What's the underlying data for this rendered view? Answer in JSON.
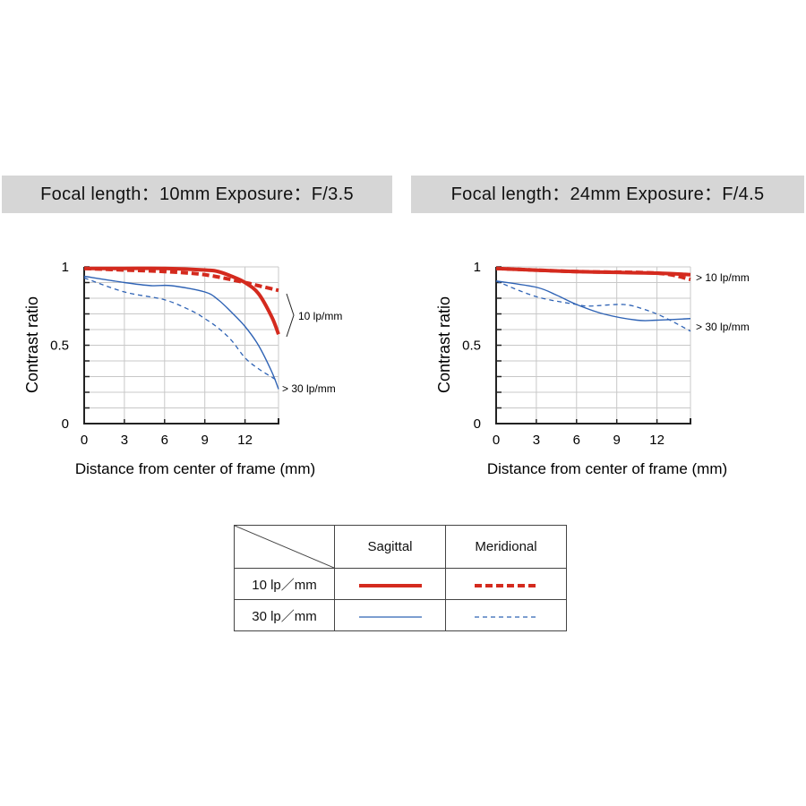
{
  "chart_data": [
    {
      "type": "line",
      "title": "Focal length：10mm  Exposure：F/3.5",
      "xlabel": "Distance from center of frame (mm)",
      "ylabel": "Contrast ratio",
      "xlim": [
        0,
        14.5
      ],
      "ylim": [
        0,
        1
      ],
      "xticks": [
        "0",
        "3",
        "6",
        "9",
        "12"
      ],
      "yticks": [
        "0",
        "0.5",
        "1"
      ],
      "grid": true,
      "annotations": [
        "10 lp/mm",
        "30 lp/mm"
      ],
      "series": [
        {
          "name": "10 lp/mm Sagittal",
          "x": [
            0,
            3,
            6,
            9,
            10,
            11,
            12,
            13,
            14,
            14.5
          ],
          "y": [
            0.99,
            0.99,
            0.99,
            0.98,
            0.97,
            0.94,
            0.9,
            0.83,
            0.68,
            0.57
          ]
        },
        {
          "name": "10 lp/mm Meridional",
          "x": [
            0,
            3,
            6,
            9,
            12,
            13,
            14.5
          ],
          "y": [
            0.99,
            0.98,
            0.97,
            0.95,
            0.9,
            0.88,
            0.85
          ]
        },
        {
          "name": "30 lp/mm Sagittal",
          "x": [
            0,
            3,
            5,
            6.5,
            9,
            10,
            11,
            12,
            13,
            14,
            14.5
          ],
          "y": [
            0.94,
            0.9,
            0.88,
            0.88,
            0.84,
            0.79,
            0.71,
            0.62,
            0.5,
            0.33,
            0.22
          ]
        },
        {
          "name": "30 lp/mm Meridional",
          "x": [
            0,
            3,
            6,
            8,
            9,
            10,
            11,
            12,
            13,
            14.5
          ],
          "y": [
            0.93,
            0.84,
            0.79,
            0.72,
            0.67,
            0.61,
            0.53,
            0.42,
            0.35,
            0.27
          ]
        }
      ]
    },
    {
      "type": "line",
      "title": "Focal length：24mm  Exposure：F/4.5",
      "xlabel": "Distance from center of frame (mm)",
      "ylabel": "Contrast ratio",
      "xlim": [
        0,
        14.5
      ],
      "ylim": [
        0,
        1
      ],
      "xticks": [
        "0",
        "3",
        "6",
        "9",
        "12"
      ],
      "yticks": [
        "0",
        "0.5",
        "1"
      ],
      "grid": true,
      "annotations": [
        "10 lp/mm",
        "30 lp/mm"
      ],
      "series": [
        {
          "name": "10 lp/mm Sagittal",
          "x": [
            0,
            6,
            12,
            14.5
          ],
          "y": [
            0.99,
            0.97,
            0.96,
            0.95
          ]
        },
        {
          "name": "10 lp/mm Meridional",
          "x": [
            0,
            6,
            12,
            14.5
          ],
          "y": [
            0.99,
            0.97,
            0.96,
            0.92
          ]
        },
        {
          "name": "30 lp/mm Sagittal",
          "x": [
            0,
            3,
            4.5,
            6,
            8,
            10.5,
            12,
            14.5
          ],
          "y": [
            0.91,
            0.87,
            0.82,
            0.76,
            0.7,
            0.66,
            0.66,
            0.67
          ]
        },
        {
          "name": "30 lp/mm Meridional",
          "x": [
            0,
            3,
            6,
            7,
            9.5,
            11,
            12.5,
            14.5
          ],
          "y": [
            0.91,
            0.81,
            0.76,
            0.75,
            0.76,
            0.73,
            0.68,
            0.59
          ]
        }
      ]
    }
  ],
  "legend": {
    "col_sagittal": "Sagittal",
    "col_meridional": "Meridional",
    "row_10": "10 lp／mm",
    "row_30": "30 lp／mm"
  },
  "colors": {
    "red": "#d42a1e",
    "blue": "#2f63b5"
  }
}
